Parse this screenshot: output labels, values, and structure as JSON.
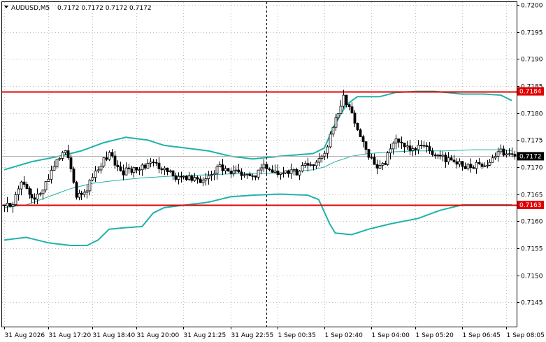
{
  "header": {
    "symbol_label": "AUDUSD,M5",
    "ohlc_label": "0.7172 0.7172 0.7172 0.7172"
  },
  "colors": {
    "background": "#ffffff",
    "frame": "#000000",
    "grid": "#c0c0c0",
    "candle": "#000000",
    "bollinger": "#20b2aa",
    "level": "#e00000",
    "price_line": "#b0b0b0",
    "price_box": "#000000"
  },
  "chart_data": {
    "type": "candlestick",
    "symbol": "AUDUSD",
    "timeframe": "M5",
    "ylim": [
      0.71405,
      0.72005
    ],
    "y_ticks": [
      {
        "value": 0.7145,
        "label": "0.7145"
      },
      {
        "value": 0.715,
        "label": "0.7150"
      },
      {
        "value": 0.7155,
        "label": "0.7155"
      },
      {
        "value": 0.716,
        "label": "0.7160"
      },
      {
        "value": 0.7165,
        "label": "0.7165"
      },
      {
        "value": 0.717,
        "label": "0.7170"
      },
      {
        "value": 0.7175,
        "label": "0.7175"
      },
      {
        "value": 0.718,
        "label": "0.7180"
      },
      {
        "value": 0.7185,
        "label": "0.7185"
      },
      {
        "value": 0.719,
        "label": "0.7190"
      },
      {
        "value": 0.7195,
        "label": "0.7195"
      },
      {
        "value": 0.72,
        "label": "0.7200"
      }
    ],
    "x_ticks": [
      {
        "index": 0,
        "label": "31 Aug 2026"
      },
      {
        "index": 16,
        "label": "31 Aug 17:20"
      },
      {
        "index": 32,
        "label": "31 Aug 18:40"
      },
      {
        "index": 48,
        "label": "31 Aug 20:00"
      },
      {
        "index": 65,
        "label": "31 Aug 21:25"
      },
      {
        "index": 82,
        "label": "31 Aug 22:55"
      },
      {
        "index": 99,
        "label": "1 Sep 00:35"
      },
      {
        "index": 116,
        "label": "1 Sep 02:40"
      },
      {
        "index": 133,
        "label": "1 Sep 04:00"
      },
      {
        "index": 149,
        "label": "1 Sep 05:20"
      },
      {
        "index": 166,
        "label": "1 Sep 06:45"
      },
      {
        "index": 182,
        "label": "1 Sep 08:05"
      }
    ],
    "levels": [
      {
        "name": "resistance",
        "value": 0.7184,
        "label": "0.7184"
      },
      {
        "name": "support",
        "value": 0.7163,
        "label": "0.7163"
      }
    ],
    "current_price": {
      "value": 0.7172,
      "label": "0.7172"
    },
    "cursor_index": 95,
    "num_bars": 186,
    "pivots": [
      [
        0,
        0.7163
      ],
      [
        3,
        0.7163
      ],
      [
        6,
        0.71675
      ],
      [
        10,
        0.7164
      ],
      [
        14,
        0.7166
      ],
      [
        18,
        0.71705
      ],
      [
        22,
        0.71735
      ],
      [
        26,
        0.7165
      ],
      [
        30,
        0.7166
      ],
      [
        34,
        0.717
      ],
      [
        38,
        0.71725
      ],
      [
        42,
        0.7169
      ],
      [
        46,
        0.71695
      ],
      [
        50,
        0.717
      ],
      [
        54,
        0.7171
      ],
      [
        58,
        0.71695
      ],
      [
        62,
        0.7168
      ],
      [
        66,
        0.7168
      ],
      [
        70,
        0.71675
      ],
      [
        74,
        0.7168
      ],
      [
        78,
        0.717
      ],
      [
        82,
        0.7169
      ],
      [
        86,
        0.7169
      ],
      [
        90,
        0.7168
      ],
      [
        94,
        0.717
      ],
      [
        98,
        0.7169
      ],
      [
        102,
        0.7169
      ],
      [
        106,
        0.7169
      ],
      [
        110,
        0.71705
      ],
      [
        114,
        0.7171
      ],
      [
        117,
        0.7174
      ],
      [
        120,
        0.7179
      ],
      [
        123,
        0.7183
      ],
      [
        126,
        0.718
      ],
      [
        129,
        0.7176
      ],
      [
        132,
        0.7172
      ],
      [
        135,
        0.717
      ],
      [
        138,
        0.7171
      ],
      [
        141,
        0.7175
      ],
      [
        144,
        0.7174
      ],
      [
        148,
        0.7173
      ],
      [
        152,
        0.7174
      ],
      [
        156,
        0.7172
      ],
      [
        160,
        0.71715
      ],
      [
        164,
        0.7171
      ],
      [
        168,
        0.717
      ],
      [
        172,
        0.71705
      ],
      [
        176,
        0.7171
      ],
      [
        180,
        0.7173
      ],
      [
        184,
        0.7172
      ],
      [
        185,
        0.7172
      ]
    ],
    "bollinger": {
      "upper": [
        [
          0,
          0.71695
        ],
        [
          10,
          0.7171
        ],
        [
          20,
          0.7172
        ],
        [
          28,
          0.7173
        ],
        [
          36,
          0.71745
        ],
        [
          44,
          0.71755
        ],
        [
          52,
          0.7175
        ],
        [
          58,
          0.7174
        ],
        [
          66,
          0.71735
        ],
        [
          74,
          0.7173
        ],
        [
          82,
          0.7172
        ],
        [
          90,
          0.71715
        ],
        [
          100,
          0.7172
        ],
        [
          112,
          0.71725
        ],
        [
          116,
          0.71735
        ],
        [
          120,
          0.7178
        ],
        [
          124,
          0.71815
        ],
        [
          128,
          0.7183
        ],
        [
          136,
          0.7183
        ],
        [
          142,
          0.71838
        ],
        [
          150,
          0.7184
        ],
        [
          156,
          0.7184
        ],
        [
          160,
          0.71838
        ],
        [
          166,
          0.71835
        ],
        [
          174,
          0.71835
        ],
        [
          180,
          0.71833
        ],
        [
          184,
          0.71823
        ]
      ],
      "middle": [
        [
          0,
          0.71625
        ],
        [
          8,
          0.7163
        ],
        [
          16,
          0.71645
        ],
        [
          24,
          0.7166
        ],
        [
          32,
          0.7167
        ],
        [
          40,
          0.71675
        ],
        [
          50,
          0.7168
        ],
        [
          60,
          0.71683
        ],
        [
          70,
          0.71685
        ],
        [
          80,
          0.71687
        ],
        [
          90,
          0.71688
        ],
        [
          100,
          0.71689
        ],
        [
          112,
          0.71695
        ],
        [
          116,
          0.717
        ],
        [
          120,
          0.7171
        ],
        [
          126,
          0.7172
        ],
        [
          132,
          0.71725
        ],
        [
          140,
          0.71728
        ],
        [
          150,
          0.7173
        ],
        [
          160,
          0.7173
        ],
        [
          170,
          0.71732
        ],
        [
          180,
          0.71732
        ],
        [
          184,
          0.7173
        ]
      ],
      "lower": [
        [
          0,
          0.71565
        ],
        [
          8,
          0.7157
        ],
        [
          16,
          0.7156
        ],
        [
          24,
          0.71555
        ],
        [
          30,
          0.71555
        ],
        [
          34,
          0.71565
        ],
        [
          38,
          0.71585
        ],
        [
          44,
          0.71588
        ],
        [
          50,
          0.7159
        ],
        [
          54,
          0.71615
        ],
        [
          58,
          0.71625
        ],
        [
          66,
          0.7163
        ],
        [
          74,
          0.71635
        ],
        [
          82,
          0.71645
        ],
        [
          90,
          0.71648
        ],
        [
          100,
          0.7165
        ],
        [
          110,
          0.71648
        ],
        [
          114,
          0.7164
        ],
        [
          118,
          0.71595
        ],
        [
          120,
          0.71578
        ],
        [
          126,
          0.71575
        ],
        [
          132,
          0.71585
        ],
        [
          140,
          0.71595
        ],
        [
          150,
          0.71605
        ],
        [
          158,
          0.7162
        ],
        [
          166,
          0.7163
        ],
        [
          170,
          0.7163
        ],
        [
          178,
          0.7163
        ],
        [
          184,
          0.7163
        ]
      ]
    }
  }
}
